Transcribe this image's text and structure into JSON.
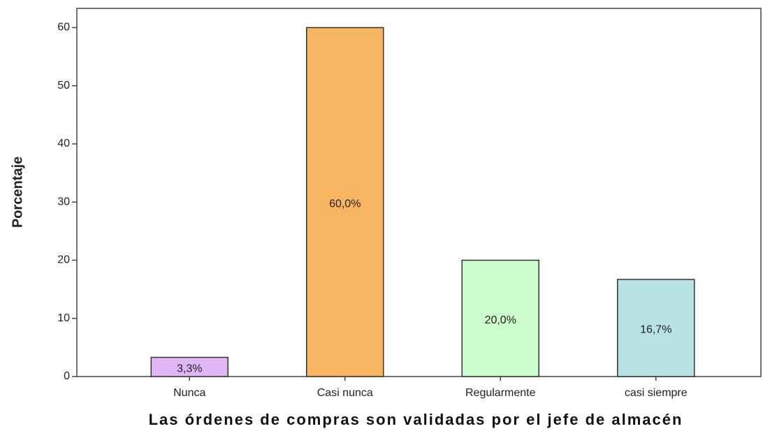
{
  "chart_data": {
    "type": "bar",
    "x_label": "Las órdenes de compras son validadas por el jefe de almacén",
    "y_label": "Porcentaje",
    "categories": [
      "Nunca",
      "Casi nunca",
      "Regularmente",
      "casi siempre"
    ],
    "values": [
      3.3,
      60.0,
      20.0,
      16.7
    ],
    "value_labels": [
      "3,3%",
      "60,0%",
      "20,0%",
      "16,7%"
    ],
    "colors": [
      "#dfb6f3",
      "#f8b561",
      "#ccfccc",
      "#b8e1e6"
    ],
    "ylim": [
      0,
      63.3
    ],
    "yticks": [
      0,
      10,
      20,
      30,
      40,
      50,
      60
    ],
    "grid": false
  }
}
